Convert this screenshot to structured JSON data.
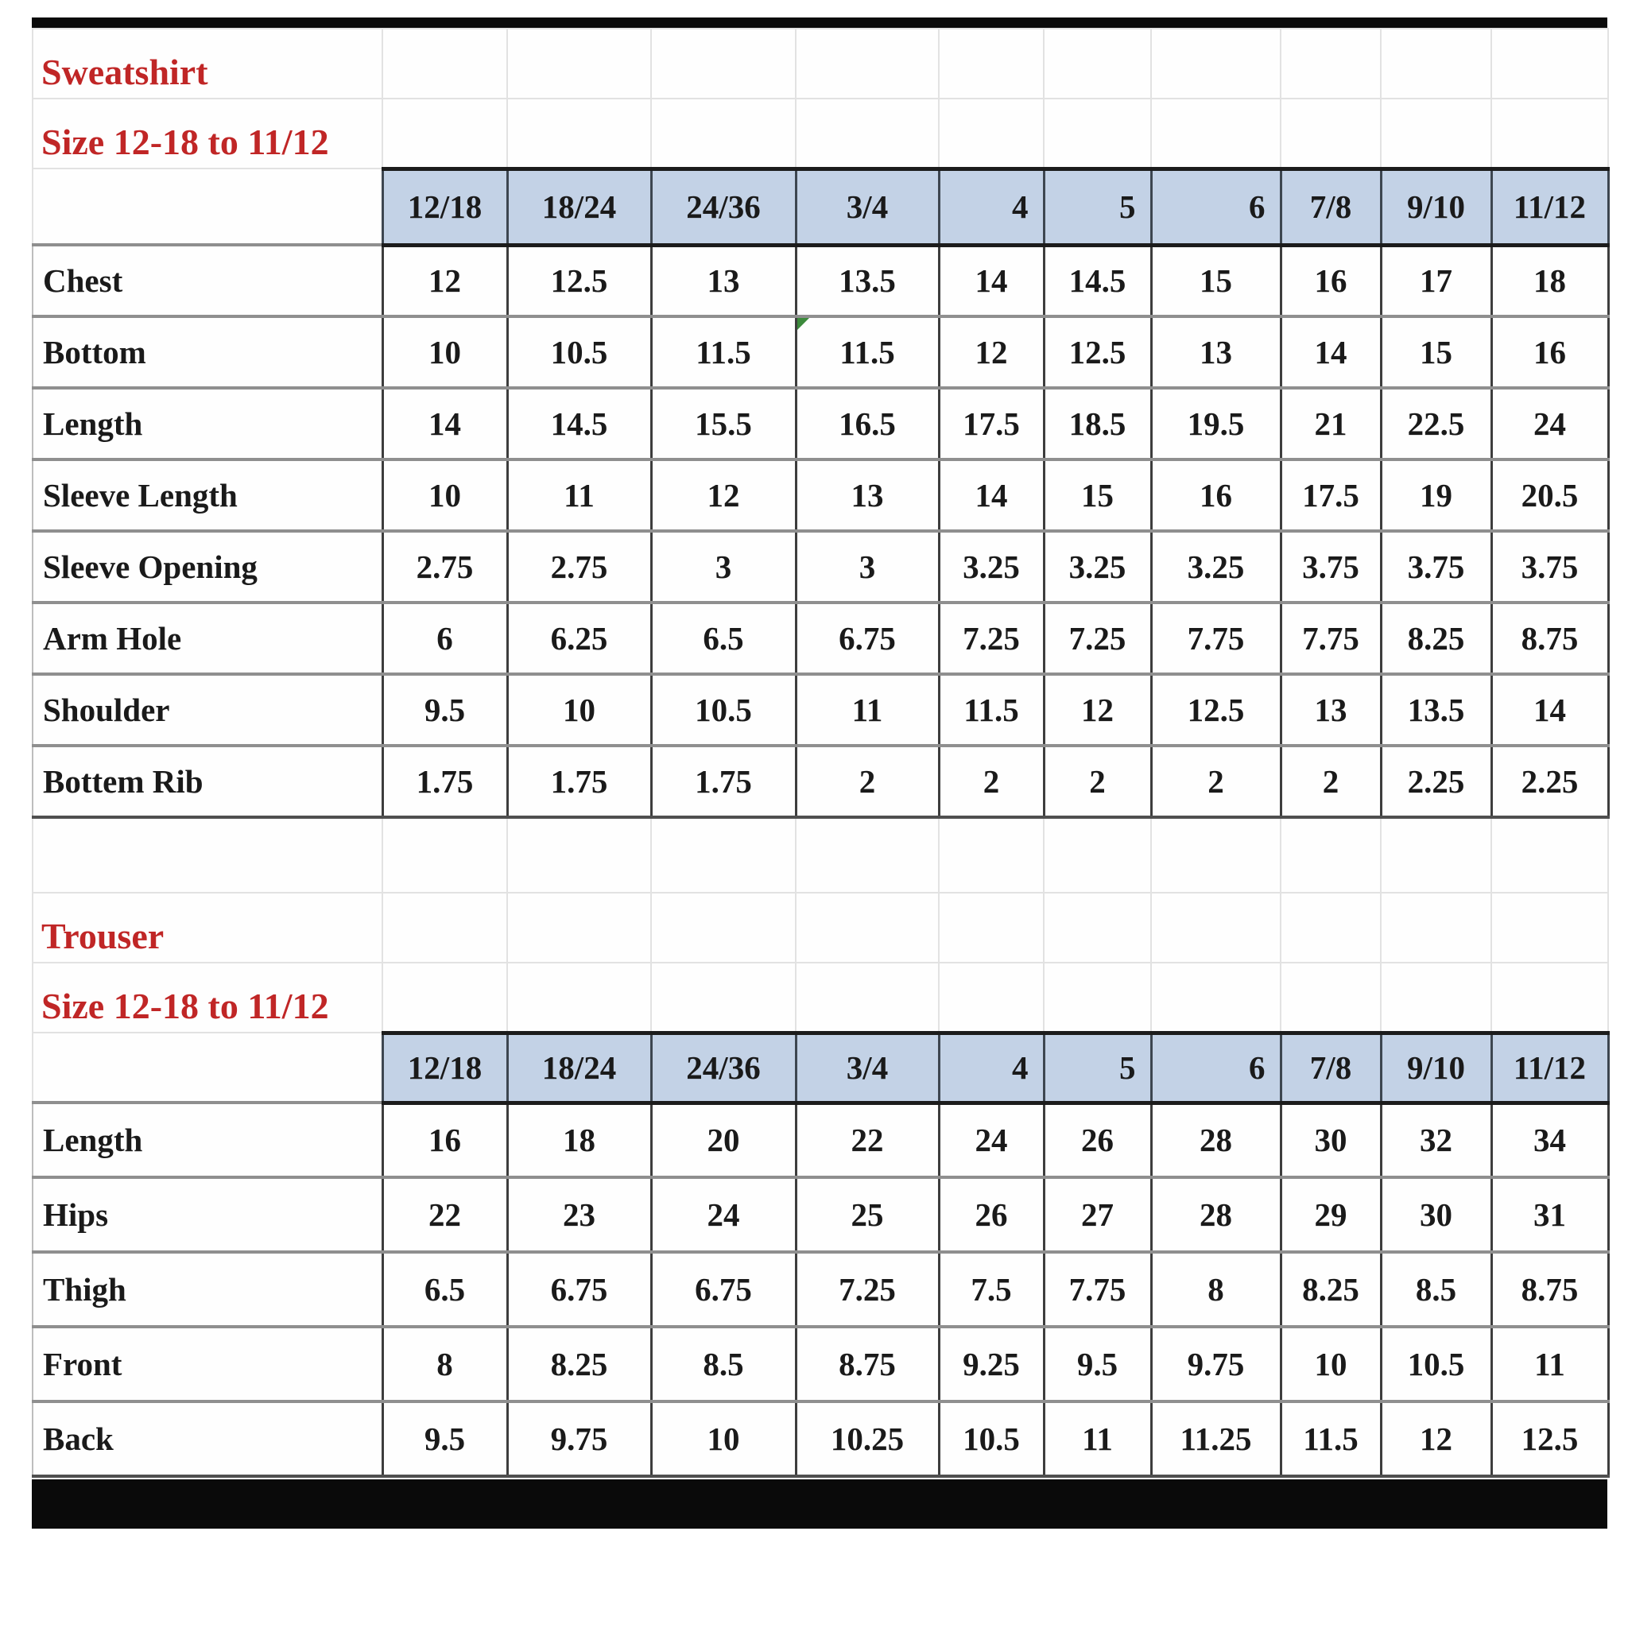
{
  "colors": {
    "header_fill": "#c3d2e6",
    "title_red": "#c02626",
    "flag_green": "#3c8a3c",
    "top_bottom_bar": "#0a0a0a"
  },
  "size_columns": [
    "12/18",
    "18/24",
    "24/36",
    "3/4",
    "4",
    "5",
    "6",
    "7/8",
    "9/10",
    "11/12"
  ],
  "right_aligned_headers": [
    "4",
    "5",
    "6"
  ],
  "sections": [
    {
      "title": "Sweatshirt",
      "subtitle": "Size 12-18 to 11/12",
      "rows": [
        {
          "label": "Chest",
          "values": [
            "12",
            "12.5",
            "13",
            "13.5",
            "14",
            "14.5",
            "15",
            "16",
            "17",
            "18"
          ]
        },
        {
          "label": "Bottom",
          "values": [
            "10",
            "10.5",
            "11.5",
            "11.5",
            "12",
            "12.5",
            "13",
            "14",
            "15",
            "16"
          ]
        },
        {
          "label": "Length",
          "values": [
            "14",
            "14.5",
            "15.5",
            "16.5",
            "17.5",
            "18.5",
            "19.5",
            "21",
            "22.5",
            "24"
          ]
        },
        {
          "label": "Sleeve Length",
          "values": [
            "10",
            "11",
            "12",
            "13",
            "14",
            "15",
            "16",
            "17.5",
            "19",
            "20.5"
          ]
        },
        {
          "label": "Sleeve Opening",
          "values": [
            "2.75",
            "2.75",
            "3",
            "3",
            "3.25",
            "3.25",
            "3.25",
            "3.75",
            "3.75",
            "3.75"
          ]
        },
        {
          "label": "Arm Hole",
          "values": [
            "6",
            "6.25",
            "6.5",
            "6.75",
            "7.25",
            "7.25",
            "7.75",
            "7.75",
            "8.25",
            "8.75"
          ]
        },
        {
          "label": "Shoulder",
          "values": [
            "9.5",
            "10",
            "10.5",
            "11",
            "11.5",
            "12",
            "12.5",
            "13",
            "13.5",
            "14"
          ]
        },
        {
          "label": "Bottem Rib",
          "values": [
            "1.75",
            "1.75",
            "1.75",
            "2",
            "2",
            "2",
            "2",
            "2",
            "2.25",
            "2.25"
          ]
        }
      ]
    },
    {
      "title": "Trouser",
      "subtitle": "Size 12-18 to 11/12",
      "rows": [
        {
          "label": "Length",
          "values": [
            "16",
            "18",
            "20",
            "22",
            "24",
            "26",
            "28",
            "30",
            "32",
            "34"
          ]
        },
        {
          "label": "Hips",
          "values": [
            "22",
            "23",
            "24",
            "25",
            "26",
            "27",
            "28",
            "29",
            "30",
            "31"
          ]
        },
        {
          "label": "Thigh",
          "values": [
            "6.5",
            "6.75",
            "6.75",
            "7.25",
            "7.5",
            "7.75",
            "8",
            "8.25",
            "8.5",
            "8.75"
          ]
        },
        {
          "label": "Front",
          "values": [
            "8",
            "8.25",
            "8.5",
            "8.75",
            "9.25",
            "9.5",
            "9.75",
            "10",
            "10.5",
            "11"
          ]
        },
        {
          "label": "Back",
          "values": [
            "9.5",
            "9.75",
            "10",
            "10.25",
            "10.5",
            "11",
            "11.25",
            "11.5",
            "12",
            "12.5"
          ]
        }
      ]
    }
  ],
  "comment_flag": {
    "section": 0,
    "row": 1,
    "column": 3
  }
}
